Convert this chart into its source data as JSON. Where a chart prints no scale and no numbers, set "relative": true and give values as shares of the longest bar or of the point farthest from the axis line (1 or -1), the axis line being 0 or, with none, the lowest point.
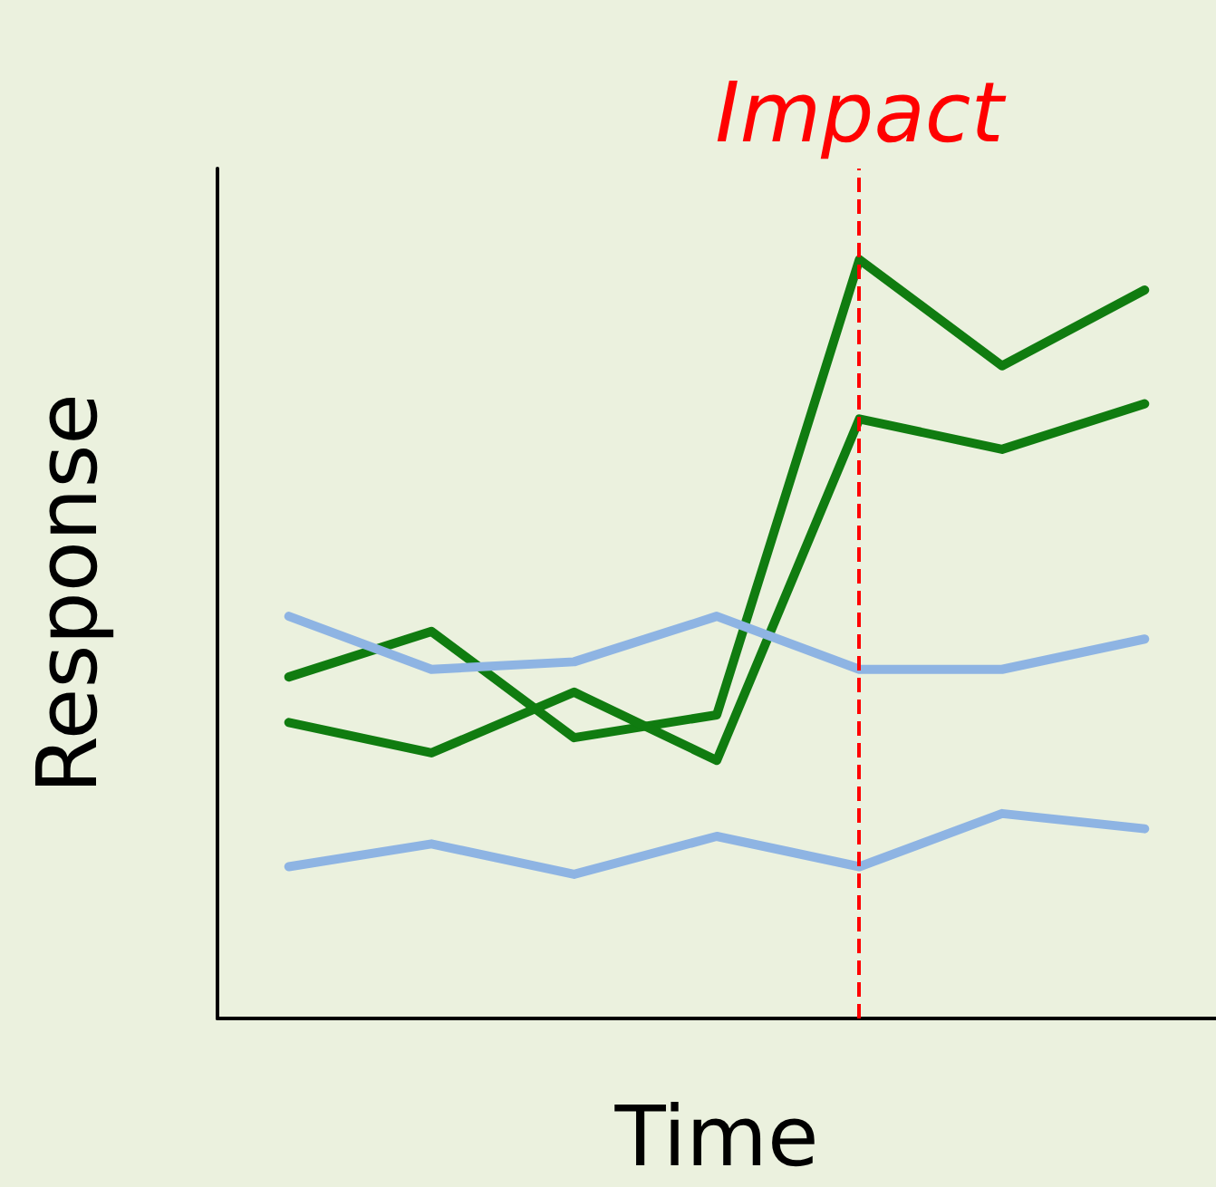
{
  "chart_data": {
    "type": "line",
    "relative": true,
    "xlabel": "Time",
    "ylabel": "Response",
    "categories": [
      null,
      null,
      null,
      null,
      null,
      null,
      null
    ],
    "grid": false,
    "marker": "none",
    "line_style": "solid",
    "series": [
      {
        "color": "#107c10",
        "values": [
          0.45,
          0.51,
          0.37,
          0.4,
          1.0,
          0.86,
          0.96
        ]
      },
      {
        "color": "#107c10",
        "values": [
          0.39,
          0.35,
          0.43,
          0.34,
          0.79,
          0.75,
          0.81
        ]
      },
      {
        "color": "#8eb4e3",
        "values": [
          0.53,
          0.46,
          0.47,
          0.53,
          0.46,
          0.46,
          0.5
        ]
      },
      {
        "color": "#8eb4e3",
        "values": [
          0.2,
          0.23,
          0.19,
          0.24,
          0.2,
          0.27,
          0.25
        ]
      }
    ],
    "ref_lines": [
      {
        "axis": "x",
        "label": "Impact",
        "color": "#ff0000",
        "line_style": "dashed"
      }
    ]
  }
}
